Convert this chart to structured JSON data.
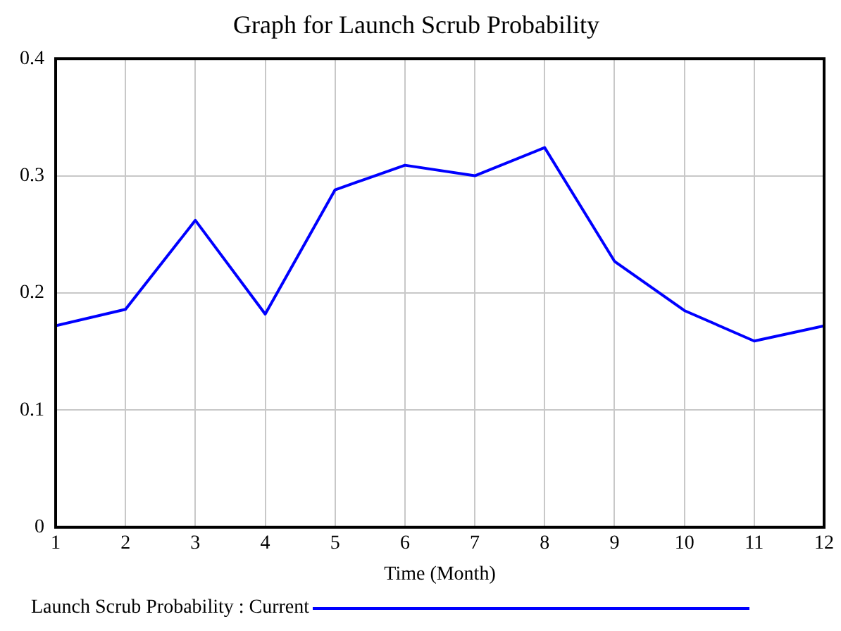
{
  "chart_data": {
    "type": "line",
    "title": "Graph for Launch Scrub Probability",
    "xlabel": "Time (Month)",
    "x": [
      1,
      2,
      3,
      4,
      5,
      6,
      7,
      8,
      9,
      10,
      11,
      12
    ],
    "series": [
      {
        "name": "Launch Scrub Probability : Current",
        "color": "#0000ff",
        "values": [
          0.172,
          0.186,
          0.262,
          0.182,
          0.288,
          0.309,
          0.3,
          0.324,
          0.227,
          0.185,
          0.159,
          0.172
        ]
      }
    ],
    "xlim": [
      1,
      12
    ],
    "xticks": [
      1,
      2,
      3,
      4,
      5,
      6,
      7,
      8,
      9,
      10,
      11,
      12
    ],
    "ylim": [
      0,
      0.4
    ],
    "yticks": [
      0,
      0.1,
      0.2,
      0.3,
      0.4
    ],
    "grid": true,
    "legend": "bottom",
    "marker": "none",
    "line_style": "solid"
  }
}
